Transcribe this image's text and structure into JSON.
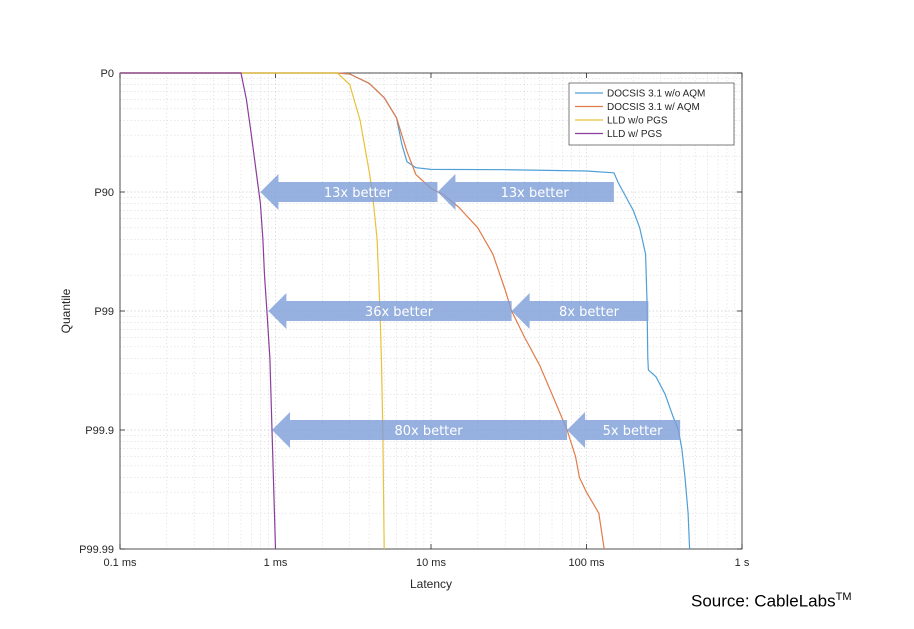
{
  "chart_data": {
    "type": "line",
    "title": "",
    "xlabel": "Latency",
    "ylabel": "Quantile",
    "x_scale": "log",
    "xlim_seconds": [
      0.0001,
      1
    ],
    "x_ticks": [
      {
        "value": 0.0001,
        "label": "0.1 ms"
      },
      {
        "value": 0.001,
        "label": "1 ms"
      },
      {
        "value": 0.01,
        "label": "10 ms"
      },
      {
        "value": 0.1,
        "label": "100 ms"
      },
      {
        "value": 1,
        "label": "1 s"
      }
    ],
    "y_scale": "nines (log of 1 - quantile)",
    "y_ticks": [
      {
        "value": 0,
        "label": "P0"
      },
      {
        "value": 90,
        "label": "P90"
      },
      {
        "value": 99,
        "label": "P99"
      },
      {
        "value": 99.9,
        "label": "P99.9"
      },
      {
        "value": 99.99,
        "label": "P99.99"
      }
    ],
    "grid": true,
    "legend_position": "top-right",
    "series": [
      {
        "name": "DOCSIS 3.1 w/o AQM",
        "color": "#4f9fd6",
        "points": [
          [
            0.0001,
            0
          ],
          [
            0.0025,
            0
          ],
          [
            0.003,
            2
          ],
          [
            0.004,
            18
          ],
          [
            0.005,
            38
          ],
          [
            0.006,
            58
          ],
          [
            0.0065,
            75
          ],
          [
            0.007,
            82
          ],
          [
            0.008,
            84
          ],
          [
            0.01,
            84.5
          ],
          [
            0.03,
            84.6
          ],
          [
            0.1,
            85.0
          ],
          [
            0.15,
            85.5
          ],
          [
            0.16,
            88
          ],
          [
            0.18,
            91
          ],
          [
            0.2,
            93
          ],
          [
            0.22,
            95
          ],
          [
            0.24,
            97
          ],
          [
            0.245,
            98.8
          ],
          [
            0.248,
            99.6
          ],
          [
            0.25,
            99.68
          ],
          [
            0.28,
            99.72
          ],
          [
            0.32,
            99.8
          ],
          [
            0.36,
            99.87
          ],
          [
            0.39,
            99.9
          ],
          [
            0.41,
            99.93
          ],
          [
            0.43,
            99.96
          ],
          [
            0.45,
            99.98
          ],
          [
            0.46,
            99.99
          ]
        ]
      },
      {
        "name": "DOCSIS 3.1 w/ AQM",
        "color": "#e07b4a",
        "points": [
          [
            0.0001,
            0
          ],
          [
            0.0025,
            0
          ],
          [
            0.003,
            2
          ],
          [
            0.004,
            18
          ],
          [
            0.005,
            38
          ],
          [
            0.006,
            58
          ],
          [
            0.007,
            78
          ],
          [
            0.008,
            86
          ],
          [
            0.01,
            89.3
          ],
          [
            0.012,
            90.5
          ],
          [
            0.015,
            92.5
          ],
          [
            0.02,
            95
          ],
          [
            0.025,
            97
          ],
          [
            0.03,
            98.5
          ],
          [
            0.033,
            99
          ],
          [
            0.04,
            99.4
          ],
          [
            0.05,
            99.65
          ],
          [
            0.06,
            99.8
          ],
          [
            0.075,
            99.9
          ],
          [
            0.085,
            99.94
          ],
          [
            0.09,
            99.96
          ],
          [
            0.1,
            99.97
          ],
          [
            0.12,
            99.98
          ],
          [
            0.13,
            99.99
          ]
        ]
      },
      {
        "name": "LLD w/o PGS",
        "color": "#e8c23a",
        "points": [
          [
            0.0001,
            0
          ],
          [
            0.0025,
            0
          ],
          [
            0.003,
            20
          ],
          [
            0.0035,
            60
          ],
          [
            0.004,
            85
          ],
          [
            0.0042,
            90
          ],
          [
            0.0045,
            96
          ],
          [
            0.0047,
            99
          ],
          [
            0.0048,
            99.6
          ],
          [
            0.0049,
            99.9
          ],
          [
            0.005,
            99.99
          ]
        ]
      },
      {
        "name": "LLD w/ PGS",
        "color": "#8a3d9c",
        "points": [
          [
            0.0001,
            0
          ],
          [
            0.0006,
            0
          ],
          [
            0.00065,
            40
          ],
          [
            0.0007,
            70
          ],
          [
            0.00075,
            85
          ],
          [
            0.0008,
            92
          ],
          [
            0.00083,
            96
          ],
          [
            0.00085,
            98
          ],
          [
            0.00088,
            99
          ],
          [
            0.00092,
            99.6
          ],
          [
            0.00095,
            99.9
          ],
          [
            0.001,
            99.99
          ]
        ]
      }
    ],
    "annotations": [
      {
        "text": "13x better",
        "from_x": 0.011,
        "to_x": 0.0008,
        "y": 90
      },
      {
        "text": "13x better",
        "from_x": 0.15,
        "to_x": 0.011,
        "y": 90
      },
      {
        "text": "36x better",
        "from_x": 0.033,
        "to_x": 0.0009,
        "y": 99
      },
      {
        "text": "8x better",
        "from_x": 0.25,
        "to_x": 0.033,
        "y": 99
      },
      {
        "text": "80x better",
        "from_x": 0.075,
        "to_x": 0.00095,
        "y": 99.9
      },
      {
        "text": "5x better",
        "from_x": 0.4,
        "to_x": 0.075,
        "y": 99.9
      }
    ]
  },
  "source": {
    "text": "Source: CableLabs",
    "superscript": "TM"
  }
}
